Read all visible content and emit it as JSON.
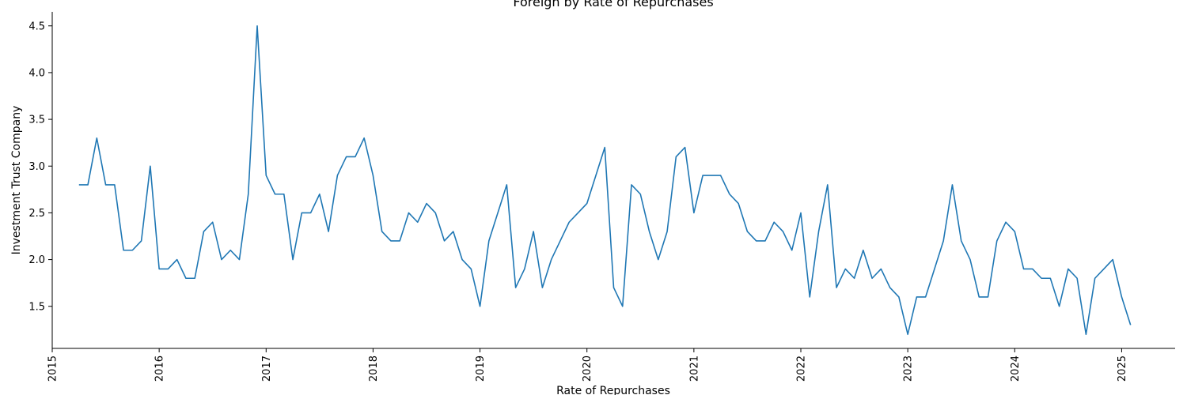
{
  "chart_data": {
    "type": "line",
    "title": "Foreign by Rate of Repurchases",
    "xlabel": "Rate of Repurchases",
    "ylabel": "Investment Trust Company",
    "xlim": [
      "2015-01-01",
      "2025-07-01"
    ],
    "ylim": [
      1.05,
      4.65
    ],
    "x_ticks": [
      "2015",
      "2016",
      "2017",
      "2018",
      "2019",
      "2020",
      "2021",
      "2022",
      "2023",
      "2024",
      "2025"
    ],
    "y_ticks": [
      "1.5",
      "2.0",
      "2.5",
      "3.0",
      "3.5",
      "4.0",
      "4.5"
    ],
    "grid": false,
    "color": "#1f77b4",
    "series": [
      {
        "x": [
          "2015-04",
          "2015-05",
          "2015-06",
          "2015-07",
          "2015-08",
          "2015-09",
          "2015-10",
          "2015-11",
          "2015-12",
          "2016-01",
          "2016-02",
          "2016-03",
          "2016-04",
          "2016-05",
          "2016-06",
          "2016-07",
          "2016-08",
          "2016-09",
          "2016-10",
          "2016-11",
          "2016-12",
          "2017-01",
          "2017-02",
          "2017-03",
          "2017-04",
          "2017-05",
          "2017-06",
          "2017-07",
          "2017-08",
          "2017-09",
          "2017-10",
          "2017-11",
          "2017-12",
          "2018-01",
          "2018-02",
          "2018-03",
          "2018-04",
          "2018-05",
          "2018-06",
          "2018-07",
          "2018-08",
          "2018-09",
          "2018-10",
          "2018-11",
          "2018-12",
          "2019-01",
          "2019-02",
          "2019-03",
          "2019-04",
          "2019-05",
          "2019-06",
          "2019-07",
          "2019-08",
          "2019-09",
          "2019-10",
          "2019-11",
          "2019-12",
          "2020-01",
          "2020-02",
          "2020-03",
          "2020-04",
          "2020-05",
          "2020-06",
          "2020-07",
          "2020-08",
          "2020-09",
          "2020-10",
          "2020-11",
          "2020-12",
          "2021-01",
          "2021-02",
          "2021-03",
          "2021-04",
          "2021-05",
          "2021-06",
          "2021-07",
          "2021-08",
          "2021-09",
          "2021-10",
          "2021-11",
          "2021-12",
          "2022-01",
          "2022-02",
          "2022-03",
          "2022-04",
          "2022-05",
          "2022-06",
          "2022-07",
          "2022-08",
          "2022-09",
          "2022-10",
          "2022-11",
          "2022-12",
          "2023-01",
          "2023-02",
          "2023-03",
          "2023-04",
          "2023-05",
          "2023-06",
          "2023-07",
          "2023-08",
          "2023-09",
          "2023-10",
          "2023-11",
          "2023-12",
          "2024-01",
          "2024-02",
          "2024-03",
          "2024-04",
          "2024-05",
          "2024-06",
          "2024-07",
          "2024-08",
          "2024-09",
          "2024-10",
          "2024-11",
          "2024-12",
          "2025-01",
          "2025-02"
        ],
        "y": [
          2.8,
          2.8,
          3.3,
          2.8,
          2.8,
          2.1,
          2.1,
          2.2,
          3.0,
          1.9,
          1.9,
          2.0,
          1.8,
          1.8,
          2.3,
          2.4,
          2.0,
          2.1,
          2.0,
          2.7,
          4.5,
          2.9,
          2.7,
          2.7,
          2.0,
          2.5,
          2.5,
          2.7,
          2.3,
          2.9,
          3.1,
          3.1,
          3.3,
          2.9,
          2.3,
          2.2,
          2.2,
          2.5,
          2.4,
          2.6,
          2.5,
          2.2,
          2.3,
          2.0,
          1.9,
          1.5,
          2.2,
          2.5,
          2.8,
          1.7,
          1.9,
          2.3,
          1.7,
          2.0,
          2.2,
          2.4,
          2.5,
          2.6,
          2.9,
          3.2,
          1.7,
          1.5,
          2.8,
          2.7,
          2.3,
          2.0,
          2.3,
          3.1,
          3.2,
          2.5,
          2.9,
          2.9,
          2.9,
          2.7,
          2.6,
          2.3,
          2.2,
          2.2,
          2.4,
          2.3,
          2.1,
          2.5,
          1.6,
          2.3,
          2.8,
          1.7,
          1.9,
          1.8,
          2.1,
          1.8,
          1.9,
          1.7,
          1.6,
          1.2,
          1.6,
          1.6,
          1.9,
          2.2,
          2.8,
          2.2,
          2.0,
          1.6,
          1.6,
          2.2,
          2.4,
          2.3,
          1.9,
          1.9,
          1.8,
          1.8,
          1.5,
          1.9,
          1.8,
          1.2,
          1.8,
          1.9,
          2.0,
          1.6,
          1.3
        ]
      }
    ]
  }
}
